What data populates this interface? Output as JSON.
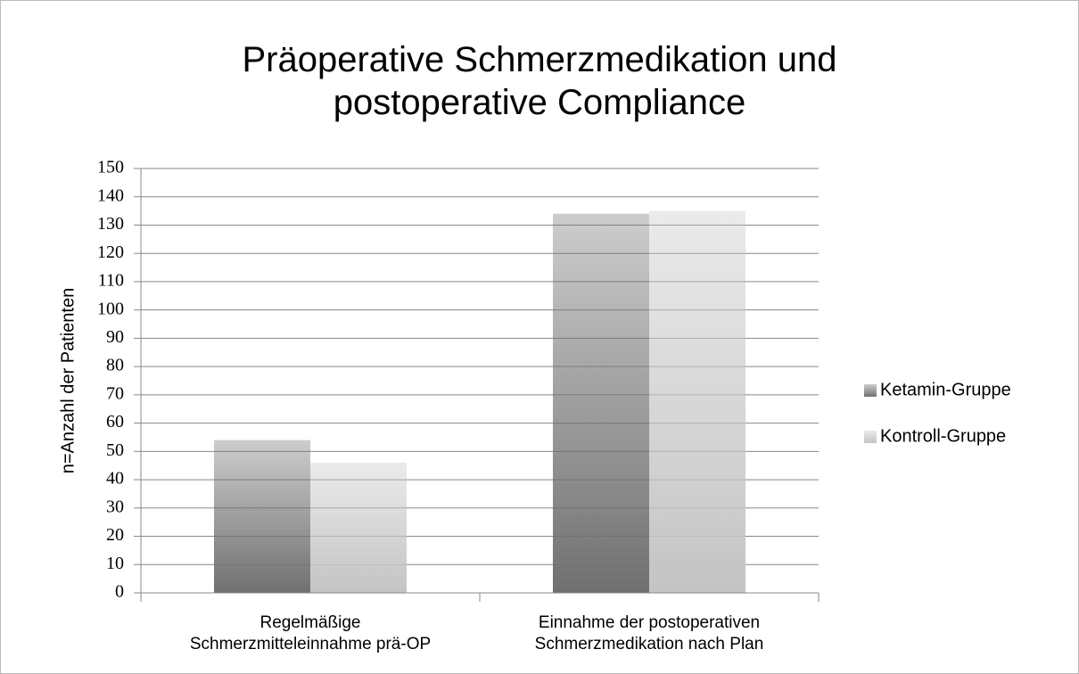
{
  "chart_data": {
    "type": "bar",
    "title": "Präoperative Schmerzmedikation und\npostoperative Compliance",
    "y_label": "n=Anzahl der Patienten",
    "categories": [
      "Regelmäßige\nSchmerzmitteleinnahme prä-OP",
      "Einnahme der postoperativen\nSchmerzmedikation nach Plan"
    ],
    "series": [
      {
        "name": "Ketamin-Gruppe",
        "color": "#707070",
        "values": [
          54,
          134
        ]
      },
      {
        "name": "Kontroll-Gruppe",
        "color": "#c4c4c4",
        "values": [
          46,
          135
        ]
      }
    ],
    "ylim": [
      0,
      150
    ],
    "yticks": [
      0,
      10,
      20,
      30,
      40,
      50,
      60,
      70,
      80,
      90,
      100,
      110,
      120,
      130,
      140,
      150
    ],
    "grid": true,
    "legend": "right"
  }
}
